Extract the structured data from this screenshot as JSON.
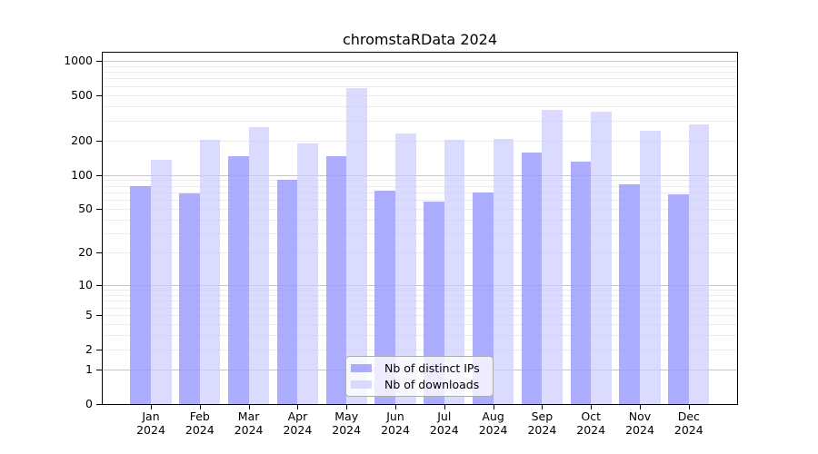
{
  "chart_data": {
    "type": "bar",
    "title": "chromstaRData 2024",
    "xlabel": "",
    "ylabel": "",
    "year_label": "2024",
    "categories": [
      "Jan",
      "Feb",
      "Mar",
      "Apr",
      "May",
      "Jun",
      "Jul",
      "Aug",
      "Sep",
      "Oct",
      "Nov",
      "Dec"
    ],
    "series": [
      {
        "name": "Nb of distinct IPs",
        "color": "rgba(153,153,255,0.8)",
        "values": [
          80,
          68,
          146,
          91,
          146,
          72,
          58,
          70,
          158,
          131,
          83,
          67
        ]
      },
      {
        "name": "Nb of downloads",
        "color": "rgba(204,204,255,0.7)",
        "values": [
          135,
          204,
          262,
          190,
          574,
          230,
          202,
          206,
          374,
          357,
          245,
          276
        ]
      }
    ],
    "y_axis": {
      "scale": "log10(value+1)",
      "labeled_ticks": [
        1000,
        500,
        200,
        100,
        50,
        20,
        10,
        5,
        2,
        1,
        0
      ],
      "major_gridlines": [
        1,
        10,
        100,
        1000
      ],
      "minor_gridlines": [
        2,
        3,
        4,
        5,
        6,
        7,
        8,
        9,
        20,
        30,
        40,
        50,
        60,
        70,
        80,
        90,
        200,
        300,
        400,
        500,
        600,
        700,
        800,
        900
      ],
      "top_value": 1178
    },
    "legend_position": "bottom-center-inside",
    "grid": true,
    "colors": {
      "bar_ips": "#9999ff",
      "bar_downloads": "#ccccff",
      "major_grid": "#c6c6c6",
      "minor_grid": "#ececec",
      "axis": "#000000"
    }
  }
}
